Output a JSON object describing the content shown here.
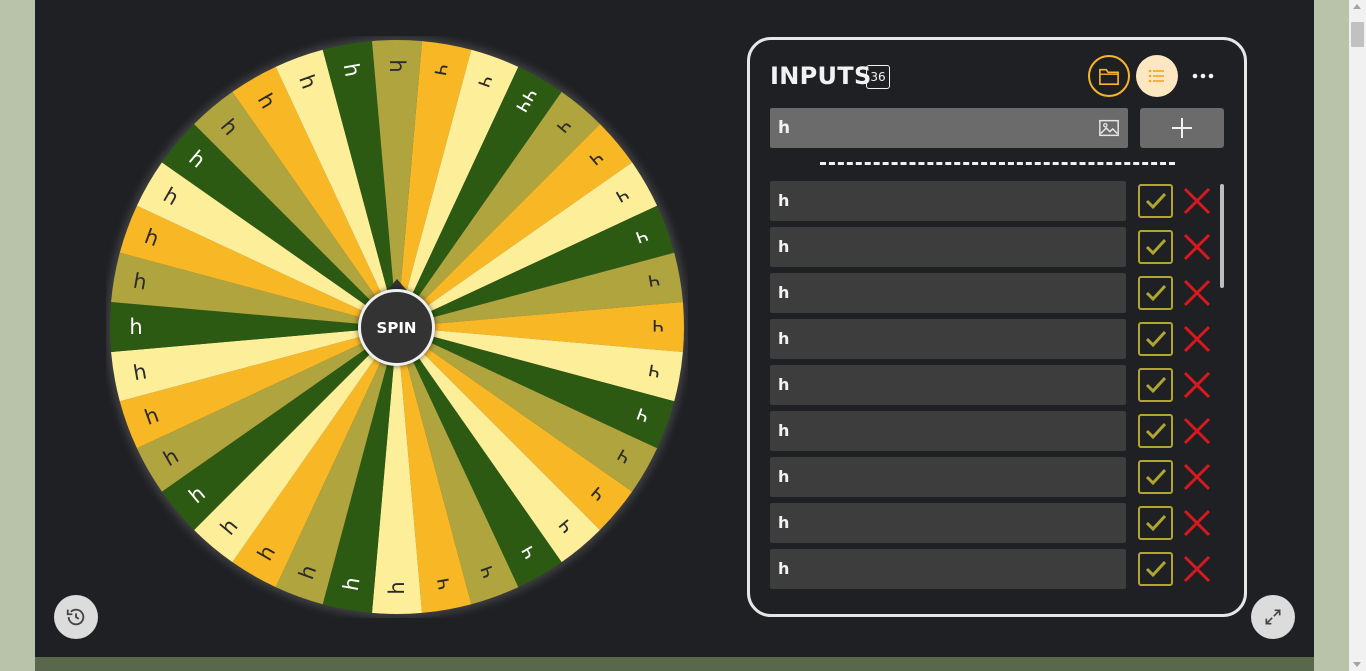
{
  "wheel": {
    "spin_label": "SPIN",
    "segment_colors": [
      "#f8b724",
      "#fdee9a",
      "#2c5a12",
      "#b0a43e"
    ],
    "segment_labels": [
      "ч",
      "ч",
      "чч",
      "ч",
      "ч",
      "ч",
      "ч",
      "ч",
      "ч",
      "ч",
      "ч",
      "ч",
      "ч",
      "ч",
      "ч",
      "ч",
      "ч",
      "h",
      "h",
      "h",
      "h",
      "h",
      "h",
      "h",
      "h",
      "h",
      "h",
      "h",
      "h",
      "h",
      "h",
      "h",
      "h",
      "h",
      "h",
      "h"
    ]
  },
  "inputs": {
    "title": "INPUTS",
    "count": "36",
    "entry_value": "h",
    "entries": [
      "h",
      "h",
      "h",
      "h",
      "h",
      "h",
      "h",
      "h",
      "h"
    ]
  },
  "icons": {
    "history": "history-icon",
    "expand": "expand-icon",
    "folder": "folder-icon",
    "list": "list-icon",
    "more": "more-icon",
    "image": "image-icon",
    "add": "plus-icon",
    "check": "check-icon",
    "remove": "close-icon"
  },
  "colors": {
    "accent": "#f8b724",
    "check_border": "#b0a52f",
    "remove": "#d7191f"
  }
}
